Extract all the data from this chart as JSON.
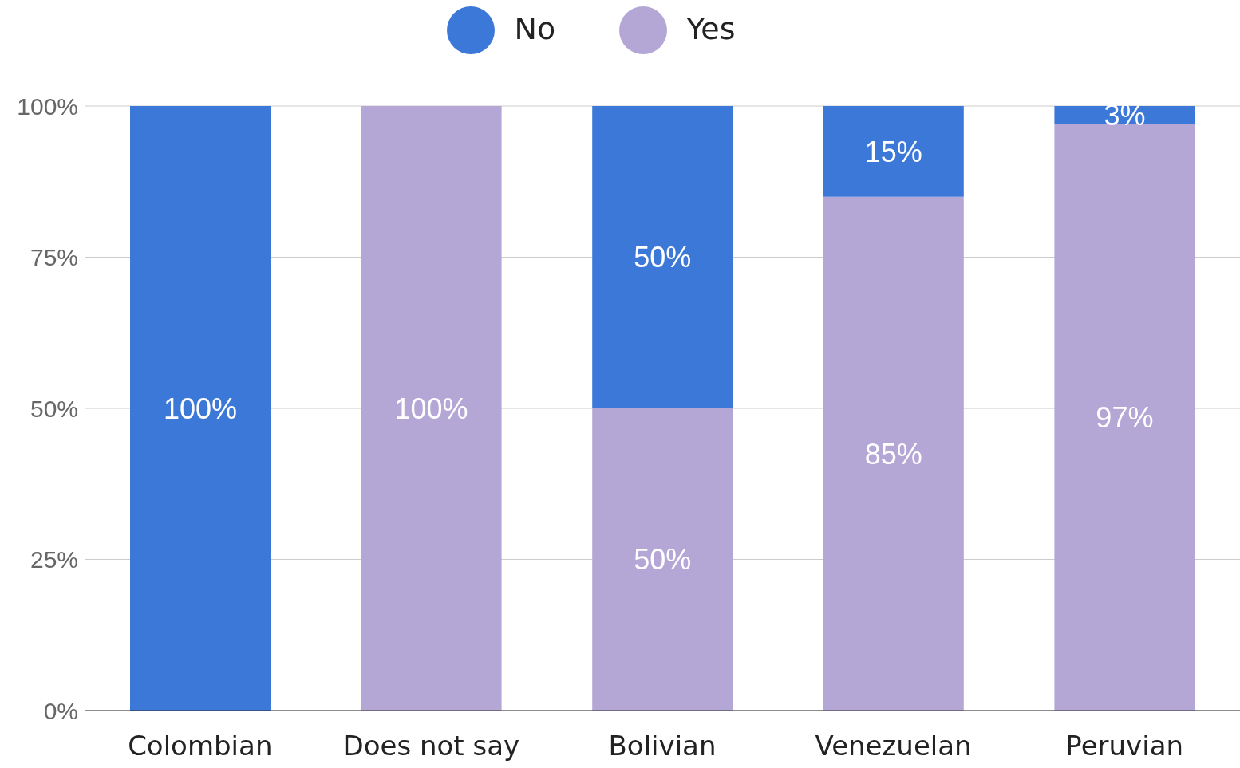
{
  "chart_data": {
    "type": "bar",
    "stacked": true,
    "categories": [
      "Colombian",
      "Does not say",
      "Bolivian",
      "Venezuelan",
      "Peruvian"
    ],
    "series": [
      {
        "name": "Yes",
        "color": "#b4a7d6",
        "values": [
          0,
          100,
          50,
          85,
          97
        ],
        "value_labels": [
          null,
          "100%",
          "50%",
          "85%",
          "97%"
        ]
      },
      {
        "name": "No",
        "color": "#3c78d8",
        "values": [
          100,
          0,
          50,
          15,
          3
        ],
        "value_labels": [
          "100%",
          null,
          "50%",
          "15%",
          "3%"
        ]
      }
    ],
    "ylim": [
      0,
      100
    ],
    "yticks": [
      {
        "value": 0,
        "label": "0%"
      },
      {
        "value": 25,
        "label": "25%"
      },
      {
        "value": 50,
        "label": "50%"
      },
      {
        "value": 75,
        "label": "75%"
      },
      {
        "value": 100,
        "label": "100%"
      }
    ],
    "grid": "y",
    "legend": "top"
  }
}
